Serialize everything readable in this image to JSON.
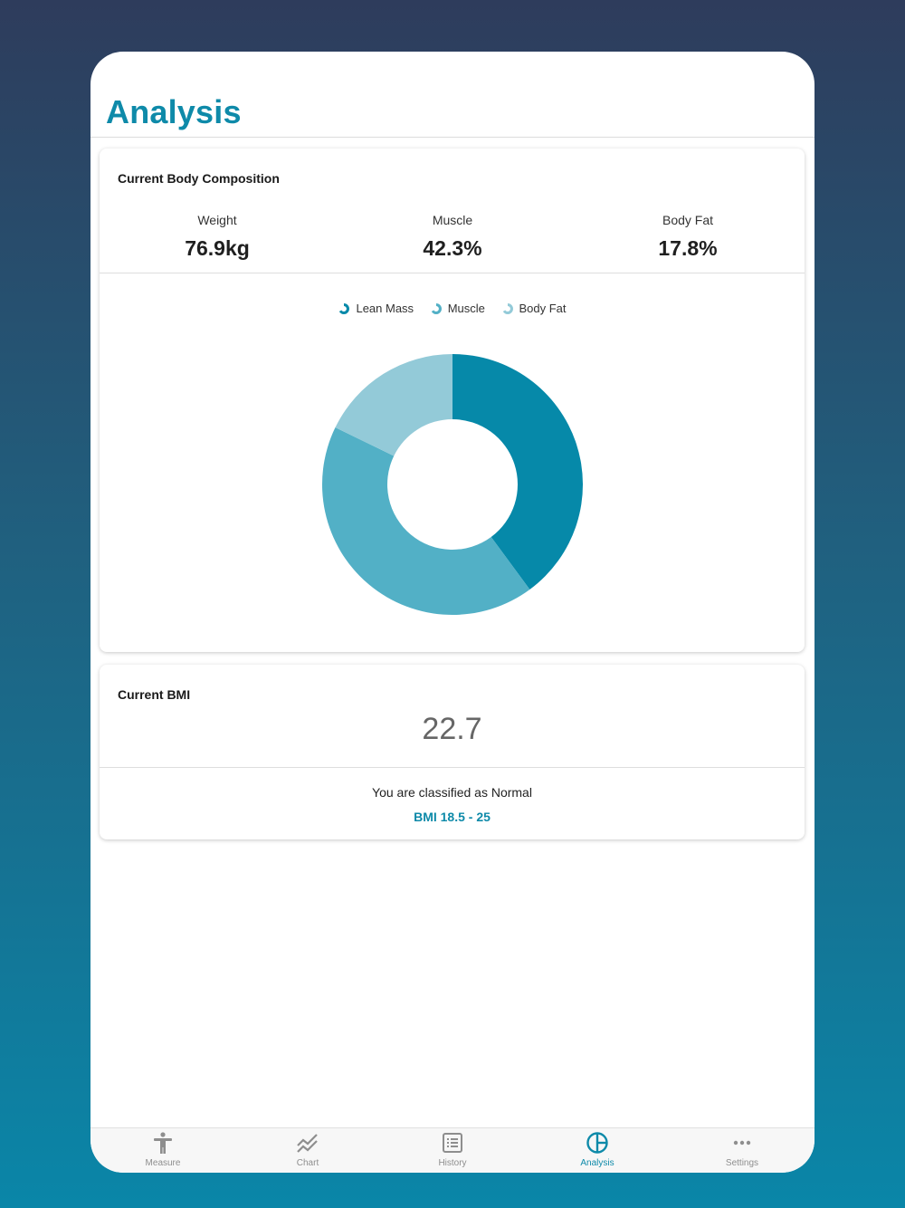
{
  "page": {
    "title": "Analysis"
  },
  "composition": {
    "title": "Current Body Composition",
    "stats": [
      {
        "label": "Weight",
        "value": "76.9kg"
      },
      {
        "label": "Muscle",
        "value": "42.3%"
      },
      {
        "label": "Body Fat",
        "value": "17.8%"
      }
    ]
  },
  "chart_data": {
    "type": "pie",
    "title": "",
    "legend": [
      "Lean Mass",
      "Muscle",
      "Body Fat"
    ],
    "legend_position": "top",
    "series": [
      {
        "name": "Lean Mass",
        "value": 39.9,
        "color": "#0689a9"
      },
      {
        "name": "Muscle",
        "value": 42.3,
        "color": "#52b0c6"
      },
      {
        "name": "Body Fat",
        "value": 17.8,
        "color": "#93cad8"
      }
    ]
  },
  "bmi": {
    "title": "Current BMI",
    "value": "22.7",
    "classification": "You are classified as Normal",
    "range": "BMI 18.5 - 25"
  },
  "tabs": [
    {
      "label": "Measure",
      "icon": "person-icon",
      "active": false
    },
    {
      "label": "Chart",
      "icon": "chart-line-icon",
      "active": false
    },
    {
      "label": "History",
      "icon": "list-icon",
      "active": false
    },
    {
      "label": "Analysis",
      "icon": "pie-icon",
      "active": true
    },
    {
      "label": "Settings",
      "icon": "more-icon",
      "active": false
    }
  ],
  "colors": {
    "accent": "#0e8aa9",
    "inactive": "#8e8e8e"
  }
}
